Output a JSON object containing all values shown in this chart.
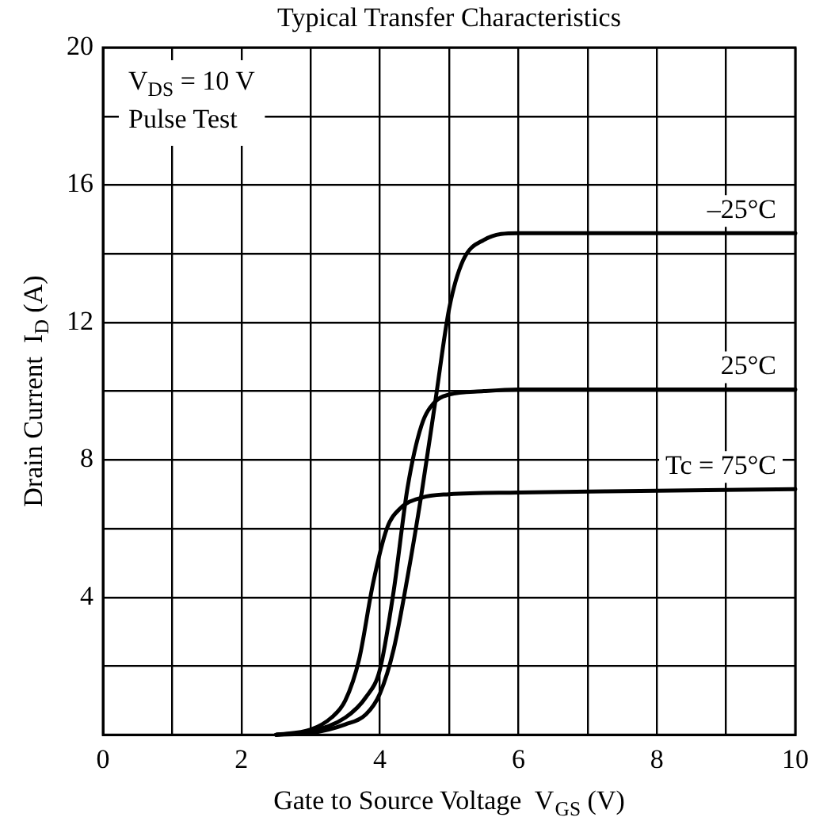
{
  "chart_data": {
    "type": "line",
    "title": "Typical Transfer Characteristics",
    "xlabel": "Gate to Source Voltage  V$_{GS}$ (V)",
    "ylabel": "Drain Current  I$_{D}$ (A)",
    "annotations": [
      "V$_{DS}$ = 10 V",
      "Pulse Test"
    ],
    "xlim": [
      0,
      10
    ],
    "ylim": [
      0,
      20
    ],
    "xticks": [
      0,
      {
        "value": 1,
        "label": null
      },
      2,
      {
        "value": 3,
        "label": null
      },
      4,
      {
        "value": 5,
        "label": null
      },
      6,
      {
        "value": 7,
        "label": null
      },
      8,
      {
        "value": 9,
        "label": null
      },
      10
    ],
    "yticks": [
      {
        "value": 0,
        "label": null
      },
      {
        "value": 2,
        "label": null
      },
      4,
      {
        "value": 6,
        "label": null
      },
      8,
      {
        "value": 10,
        "label": null
      },
      12,
      {
        "value": 14,
        "label": null
      },
      16,
      {
        "value": 18,
        "label": null
      },
      20
    ],
    "grid": true,
    "marker": "none",
    "line_style": "solid",
    "series": [
      {
        "name": "–25°C",
        "color": "#000000",
        "x": [
          2.5,
          3,
          3.5,
          3.8,
          4,
          4.2,
          4.4,
          4.6,
          4.8,
          5,
          5.2,
          5.5,
          6,
          10
        ],
        "values": [
          0,
          0.05,
          0.3,
          0.6,
          1.2,
          2.5,
          4.6,
          7,
          9.7,
          12.4,
          13.8,
          14.4,
          14.6,
          14.6
        ]
      },
      {
        "name": "25°C",
        "color": "#000000",
        "x": [
          2.5,
          3,
          3.5,
          3.8,
          4,
          4.2,
          4.4,
          4.6,
          4.8,
          5,
          5.5,
          6,
          10
        ],
        "values": [
          0,
          0.1,
          0.5,
          1.1,
          1.9,
          4.2,
          7.2,
          9,
          9.7,
          9.9,
          10,
          10.05,
          10.05
        ]
      },
      {
        "name": "Tc = 75°C",
        "color": "#000000",
        "x": [
          2.5,
          3,
          3.3,
          3.5,
          3.7,
          3.9,
          4.1,
          4.3,
          4.6,
          5,
          6,
          8,
          10
        ],
        "values": [
          0,
          0.15,
          0.5,
          1,
          2.2,
          4.4,
          6,
          6.6,
          6.9,
          7,
          7.05,
          7.1,
          7.15
        ]
      }
    ]
  }
}
